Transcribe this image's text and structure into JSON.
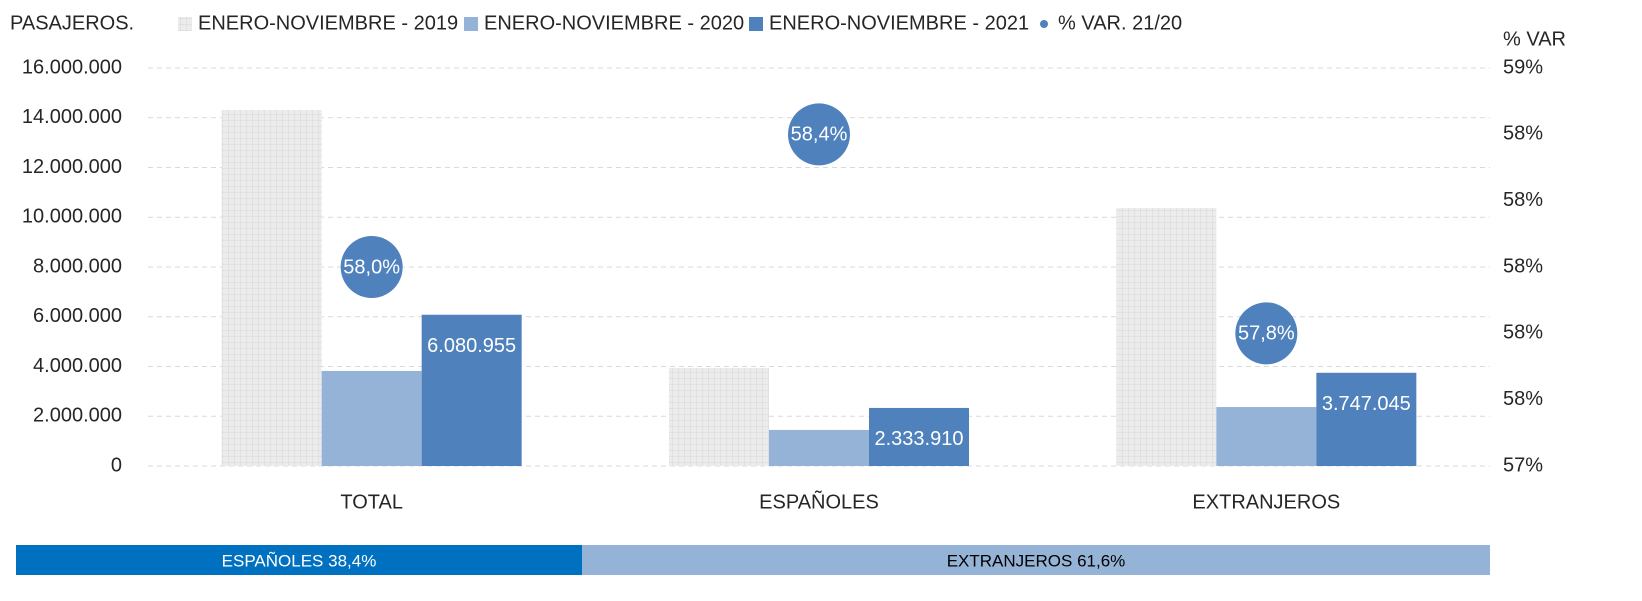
{
  "chart_data": {
    "type": "bar",
    "ylabel": "PASAJEROS.",
    "y2label": "% VAR",
    "categories": [
      "TOTAL",
      "ESPAÑOLES",
      "EXTRANJEROS"
    ],
    "series": [
      {
        "name": "ENERO-NOVIEMBRE - 2019",
        "color": "#e8e8e8",
        "pattern": "grid",
        "values": [
          14310000,
          3940000,
          10370000
        ]
      },
      {
        "name": "ENERO-NOVIEMBRE - 2020",
        "color": "#95b3d7",
        "values": [
          3820000,
          1450000,
          2370000
        ]
      },
      {
        "name": "ENERO-NOVIEMBRE - 2021",
        "color": "#4f81bd",
        "values": [
          6080955,
          2333910,
          3747045
        ],
        "value_labels": [
          "6.080.955",
          "2.333.910",
          "3.747.045"
        ]
      },
      {
        "name": "% VAR. 21/20",
        "color": "#4f81bd",
        "type": "bubble",
        "axis": "y2",
        "values": [
          58.0,
          58.4,
          57.8
        ],
        "value_labels": [
          "58,0%",
          "58,4%",
          "57,8%"
        ]
      }
    ],
    "ylim": [
      0,
      16000000
    ],
    "yticks": [
      0,
      {
        "value": 2000000,
        "label": "2.000.000"
      },
      {
        "value": 4000000,
        "label": "4.000.000"
      },
      {
        "value": 6000000,
        "label": "6.000.000"
      },
      {
        "value": 8000000,
        "label": "8.000.000"
      },
      {
        "value": 10000000,
        "label": "10.000.000"
      },
      {
        "value": 12000000,
        "label": "12.000.000"
      },
      {
        "value": 14000000,
        "label": "14.000.000"
      },
      {
        "value": 16000000,
        "label": "16.000.000"
      }
    ],
    "y2lim": [
      57.4,
      58.6
    ],
    "y2ticks": [
      {
        "value": 57.4,
        "label": "57%"
      },
      {
        "value": 57.6,
        "label": "58%"
      },
      {
        "value": 57.8,
        "label": "58%"
      },
      {
        "value": 58.0,
        "label": "58%"
      },
      {
        "value": 58.2,
        "label": "58%"
      },
      {
        "value": 58.4,
        "label": "58%"
      },
      {
        "value": 58.6,
        "label": "59%"
      }
    ],
    "grid": true,
    "legend": "top"
  },
  "share_bar": {
    "segments": [
      {
        "label": "ESPAÑOLES 38,4%",
        "value": 38.4,
        "color": "#0070c0",
        "text_color": "#ffffff"
      },
      {
        "label": "EXTRANJEROS 61,6%",
        "value": 61.6,
        "color": "#95b3d7",
        "text_color": "#000000"
      }
    ]
  }
}
